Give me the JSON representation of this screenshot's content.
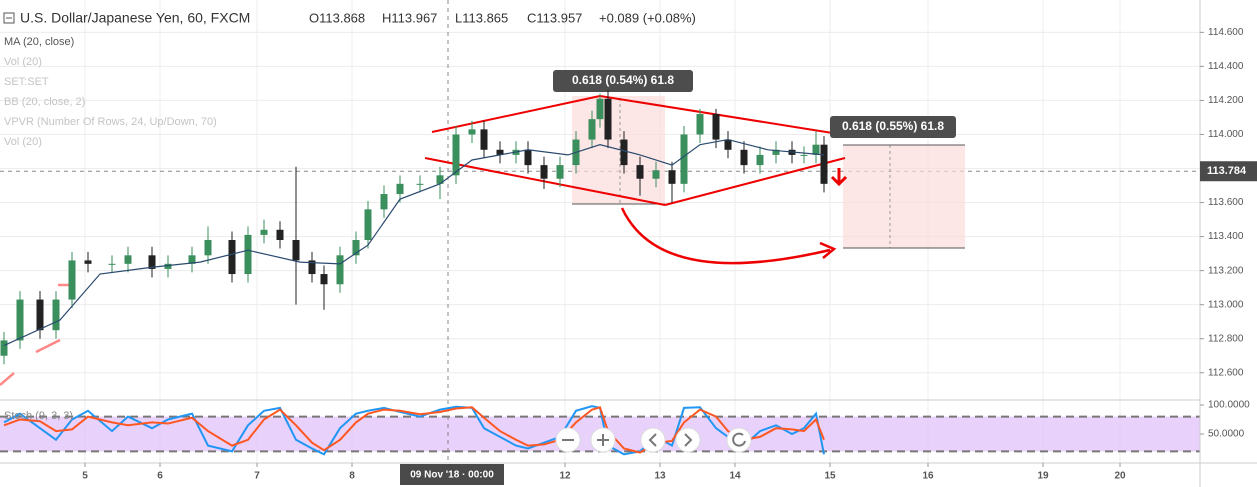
{
  "header": {
    "symbol": "U.S. Dollar/Japanese Yen, 60, FXCM",
    "open": "O113.868",
    "high": "H113.967",
    "low": "L113.865",
    "close": "C113.957",
    "change": "+0.089 (+0.08%)"
  },
  "indicators": [
    "MA (20, close)",
    "Vol (20)",
    "SET:SET",
    "BB (20, close, 2)",
    "VPVR (Number Of Rows, 24, Up/Down, 70)",
    "Vol (20)"
  ],
  "chart_data": {
    "type": "candlestick",
    "x": [
      1,
      5,
      10,
      14,
      18,
      22,
      28,
      32,
      38,
      42,
      48,
      52,
      58,
      62,
      66,
      70,
      74,
      78,
      81,
      85,
      89,
      92,
      96,
      100,
      105,
      110,
      114,
      118,
      121,
      125,
      129,
      132,
      136,
      140,
      144,
      148,
      150,
      152,
      156,
      160,
      164,
      168,
      171,
      175,
      179,
      182,
      186,
      190,
      194,
      198,
      201,
      204,
      206
    ],
    "open": [
      112.7,
      112.79,
      113.03,
      112.85,
      113.03,
      113.26,
      113.24,
      113.24,
      113.29,
      113.21,
      113.24,
      113.29,
      113.38,
      113.18,
      113.41,
      113.44,
      113.38,
      113.26,
      113.18,
      113.12,
      113.29,
      113.38,
      113.56,
      113.65,
      113.71,
      113.71,
      113.76,
      114.0,
      114.03,
      113.91,
      113.88,
      113.91,
      113.82,
      113.74,
      113.82,
      113.97,
      114.09,
      114.21,
      113.97,
      113.82,
      113.74,
      113.79,
      113.71,
      114.0,
      114.12,
      113.97,
      113.91,
      113.82,
      113.88,
      113.91,
      113.88,
      113.88,
      113.94
    ],
    "high": [
      112.84,
      113.08,
      113.08,
      113.08,
      113.31,
      113.31,
      113.29,
      113.34,
      113.34,
      113.29,
      113.34,
      113.46,
      113.43,
      113.46,
      113.5,
      113.49,
      113.81,
      113.31,
      113.23,
      113.34,
      113.43,
      113.61,
      113.7,
      113.76,
      113.76,
      113.81,
      114.05,
      114.08,
      114.08,
      113.96,
      113.96,
      113.96,
      113.87,
      113.87,
      114.02,
      114.14,
      114.24,
      114.26,
      114.02,
      113.87,
      113.84,
      113.84,
      114.05,
      114.15,
      114.15,
      114.02,
      113.96,
      113.93,
      113.96,
      113.96,
      113.93,
      114.02,
      113.99
    ],
    "low": [
      112.65,
      112.74,
      112.8,
      112.8,
      112.98,
      113.19,
      113.19,
      113.19,
      113.16,
      113.16,
      113.19,
      113.24,
      113.13,
      113.13,
      113.36,
      113.33,
      113.0,
      113.13,
      112.97,
      113.07,
      113.24,
      113.33,
      113.51,
      113.6,
      113.66,
      113.62,
      113.71,
      113.95,
      113.86,
      113.83,
      113.83,
      113.77,
      113.68,
      113.69,
      113.77,
      113.92,
      114.04,
      113.92,
      113.77,
      113.64,
      113.69,
      113.6,
      113.66,
      113.95,
      113.92,
      113.86,
      113.77,
      113.77,
      113.83,
      113.83,
      113.83,
      113.83,
      113.66
    ],
    "close": [
      112.79,
      113.03,
      112.85,
      113.03,
      113.26,
      113.24,
      113.24,
      113.29,
      113.21,
      113.24,
      113.29,
      113.38,
      113.18,
      113.41,
      113.44,
      113.38,
      113.26,
      113.18,
      113.12,
      113.29,
      113.38,
      113.56,
      113.65,
      113.71,
      113.71,
      113.76,
      114.0,
      114.03,
      113.91,
      113.88,
      113.91,
      113.82,
      113.74,
      113.82,
      113.97,
      114.09,
      114.21,
      113.97,
      113.82,
      113.74,
      113.79,
      113.71,
      114.0,
      114.12,
      113.97,
      113.91,
      113.82,
      113.88,
      113.91,
      113.88,
      113.88,
      113.94,
      113.71
    ],
    "up_color": "#3a8f5c",
    "down_color": "#222222",
    "ma": {
      "color": "#2b4a6f",
      "x": [
        1,
        15,
        25,
        38,
        50,
        62,
        75,
        85,
        92,
        100,
        110,
        118,
        125,
        132,
        142,
        150,
        160,
        168,
        175,
        182,
        192,
        206
      ],
      "values": [
        112.76,
        112.91,
        113.18,
        113.22,
        113.25,
        113.32,
        113.25,
        113.24,
        113.35,
        113.62,
        113.71,
        113.85,
        113.88,
        113.91,
        113.88,
        113.94,
        113.88,
        113.82,
        113.94,
        113.97,
        113.91,
        113.88
      ]
    },
    "xlim": [
      0,
      300
    ],
    "xticks": [
      {
        "value": 21.25,
        "label": "5"
      },
      {
        "value": 40,
        "label": "6"
      },
      {
        "value": 64.25,
        "label": "7"
      },
      {
        "value": 88,
        "label": "8"
      },
      {
        "value": 141.25,
        "label": "12"
      },
      {
        "value": 165,
        "label": "13"
      },
      {
        "value": 183.75,
        "label": "14"
      },
      {
        "value": 207.5,
        "label": "15"
      },
      {
        "value": 232,
        "label": "16"
      },
      {
        "value": 260.75,
        "label": "19"
      },
      {
        "value": 280,
        "label": "20"
      }
    ],
    "ylim": [
      112.44,
      114.79
    ],
    "yticks": [
      {
        "value": 112.6,
        "label": "112.600"
      },
      {
        "value": 112.8,
        "label": "112.800"
      },
      {
        "value": 113,
        "label": "113.000"
      },
      {
        "value": 113.2,
        "label": "113.200"
      },
      {
        "value": 113.4,
        "label": "113.400"
      },
      {
        "value": 113.6,
        "label": "113.600"
      },
      {
        "value": 113.8,
        "label": "113.800"
      },
      {
        "value": 114,
        "label": "114.000"
      },
      {
        "value": 114.2,
        "label": "114.200"
      },
      {
        "value": 114.4,
        "label": "114.400"
      },
      {
        "value": 114.6,
        "label": "114.600"
      }
    ],
    "grid": true,
    "last_price": 113.784,
    "crosshair": {
      "x": 112,
      "label": "09 Nov '18 · 00:00"
    },
    "annotations": [
      "0.618 (0.54%) 61.8",
      "0.618 (0.55%) 61.8"
    ],
    "stoch": {
      "title": "Stoch (9, 3, 3)",
      "ylim": [
        0,
        108.6
      ],
      "yticks": [
        {
          "value": 50,
          "label": "50.0000"
        },
        {
          "value": 100,
          "label": "100.0000"
        }
      ],
      "bands": [
        20,
        80
      ],
      "band_color": "#e2c6fa",
      "series": [
        {
          "color": "#2196f3",
          "values": [
            70,
            85,
            60,
            40,
            75,
            90,
            55,
            80,
            60,
            75,
            85,
            30,
            20,
            65,
            90,
            95,
            40,
            25,
            15,
            60,
            85,
            90,
            95,
            88,
            80,
            92,
            97,
            95,
            60,
            45,
            30,
            25,
            35,
            45,
            90,
            98,
            95,
            30,
            15,
            20,
            45,
            30,
            95,
            96,
            60,
            45,
            30,
            55,
            65,
            50,
            60,
            85,
            15
          ]
        },
        {
          "color": "#ff5722",
          "values": [
            65,
            75,
            72,
            55,
            58,
            80,
            70,
            65,
            70,
            68,
            78,
            55,
            30,
            40,
            75,
            92,
            65,
            35,
            22,
            40,
            70,
            85,
            92,
            90,
            84,
            88,
            94,
            96,
            78,
            55,
            40,
            30,
            32,
            40,
            70,
            92,
            96,
            55,
            25,
            18,
            35,
            38,
            70,
            92,
            80,
            55,
            40,
            45,
            60,
            58,
            55,
            75,
            40
          ]
        }
      ]
    }
  }
}
